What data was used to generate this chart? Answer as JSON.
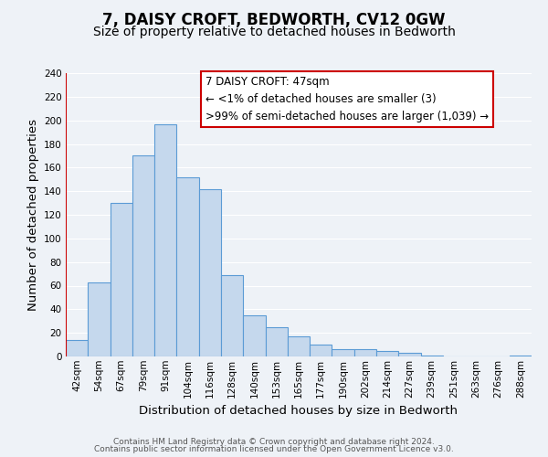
{
  "title": "7, DAISY CROFT, BEDWORTH, CV12 0GW",
  "subtitle": "Size of property relative to detached houses in Bedworth",
  "xlabel": "Distribution of detached houses by size in Bedworth",
  "ylabel": "Number of detached properties",
  "bin_labels": [
    "42sqm",
    "54sqm",
    "67sqm",
    "79sqm",
    "91sqm",
    "104sqm",
    "116sqm",
    "128sqm",
    "140sqm",
    "153sqm",
    "165sqm",
    "177sqm",
    "190sqm",
    "202sqm",
    "214sqm",
    "227sqm",
    "239sqm",
    "251sqm",
    "263sqm",
    "276sqm",
    "288sqm"
  ],
  "bar_heights": [
    14,
    63,
    130,
    170,
    197,
    152,
    142,
    69,
    35,
    25,
    17,
    10,
    6,
    6,
    5,
    3,
    1,
    0,
    0,
    0,
    1
  ],
  "bar_color": "#c5d8ed",
  "bar_edge_color": "#5b9bd5",
  "ylim": [
    0,
    240
  ],
  "yticks": [
    0,
    20,
    40,
    60,
    80,
    100,
    120,
    140,
    160,
    180,
    200,
    220,
    240
  ],
  "annotation_box_text": "7 DAISY CROFT: 47sqm\n← <1% of detached houses are smaller (3)\n>99% of semi-detached houses are larger (1,039) →",
  "annotation_box_color": "#ffffff",
  "annotation_box_edge_color": "#cc0000",
  "marker_line_color": "#cc0000",
  "footer_line1": "Contains HM Land Registry data © Crown copyright and database right 2024.",
  "footer_line2": "Contains public sector information licensed under the Open Government Licence v3.0.",
  "bg_color": "#eef2f7",
  "grid_color": "#ffffff",
  "title_fontsize": 12,
  "subtitle_fontsize": 10,
  "axis_label_fontsize": 9.5,
  "tick_fontsize": 7.5,
  "annotation_fontsize": 8.5,
  "footer_fontsize": 6.5
}
